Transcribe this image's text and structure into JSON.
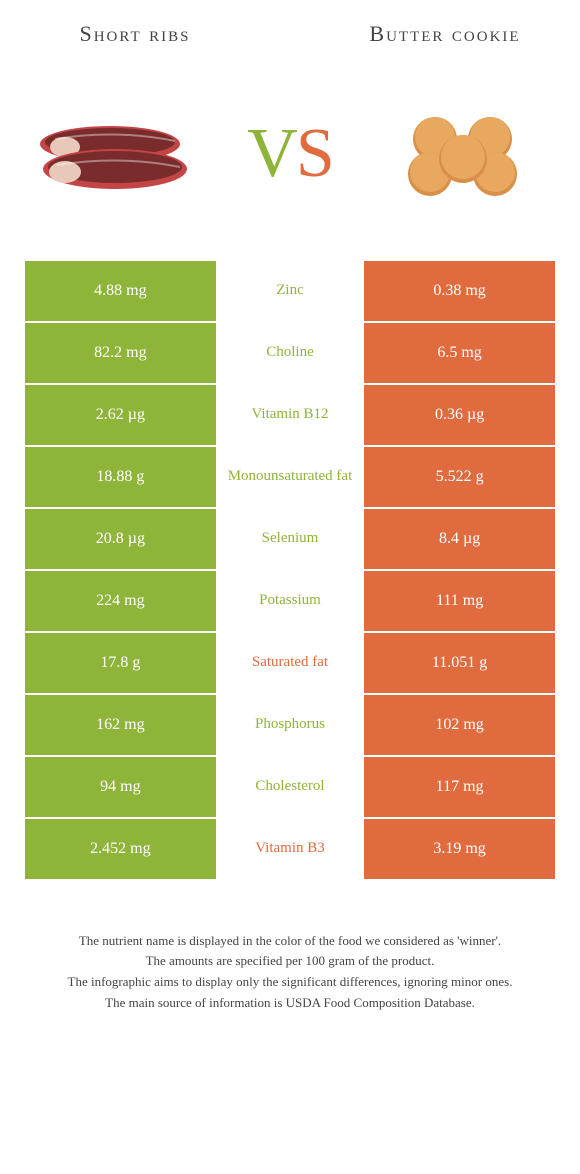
{
  "header": {
    "left_title": "Short ribs",
    "right_title": "Butter cookie",
    "vs_v": "V",
    "vs_s": "S"
  },
  "colors": {
    "green": "#8FB43A",
    "orange": "#E06B3F",
    "meat_dark": "#7A2B2B",
    "meat_light": "#C44545",
    "meat_fat": "#E8C8B8",
    "cookie": "#D89048",
    "cookie_light": "#E8A860"
  },
  "rows": [
    {
      "left": "4.88 mg",
      "nutrient": "Zinc",
      "winner": "green",
      "right": "0.38 mg"
    },
    {
      "left": "82.2 mg",
      "nutrient": "Choline",
      "winner": "green",
      "right": "6.5 mg"
    },
    {
      "left": "2.62 µg",
      "nutrient": "Vitamin B12",
      "winner": "green",
      "right": "0.36 µg"
    },
    {
      "left": "18.88 g",
      "nutrient": "Monounsaturated fat",
      "winner": "green",
      "right": "5.522 g"
    },
    {
      "left": "20.8 µg",
      "nutrient": "Selenium",
      "winner": "green",
      "right": "8.4 µg"
    },
    {
      "left": "224 mg",
      "nutrient": "Potassium",
      "winner": "green",
      "right": "111 mg"
    },
    {
      "left": "17.8 g",
      "nutrient": "Saturated fat",
      "winner": "orange",
      "right": "11.051 g"
    },
    {
      "left": "162 mg",
      "nutrient": "Phosphorus",
      "winner": "green",
      "right": "102 mg"
    },
    {
      "left": "94 mg",
      "nutrient": "Cholesterol",
      "winner": "green",
      "right": "117 mg"
    },
    {
      "left": "2.452 mg",
      "nutrient": "Vitamin B3",
      "winner": "orange",
      "right": "3.19 mg"
    }
  ],
  "footer": {
    "line1": "The nutrient name is displayed in the color of the food we considered as 'winner'.",
    "line2": "The amounts are specified per 100 gram of the product.",
    "line3": "The infographic aims to display only the significant differences, ignoring minor ones.",
    "line4": "The main source of information is USDA Food Composition Database."
  }
}
